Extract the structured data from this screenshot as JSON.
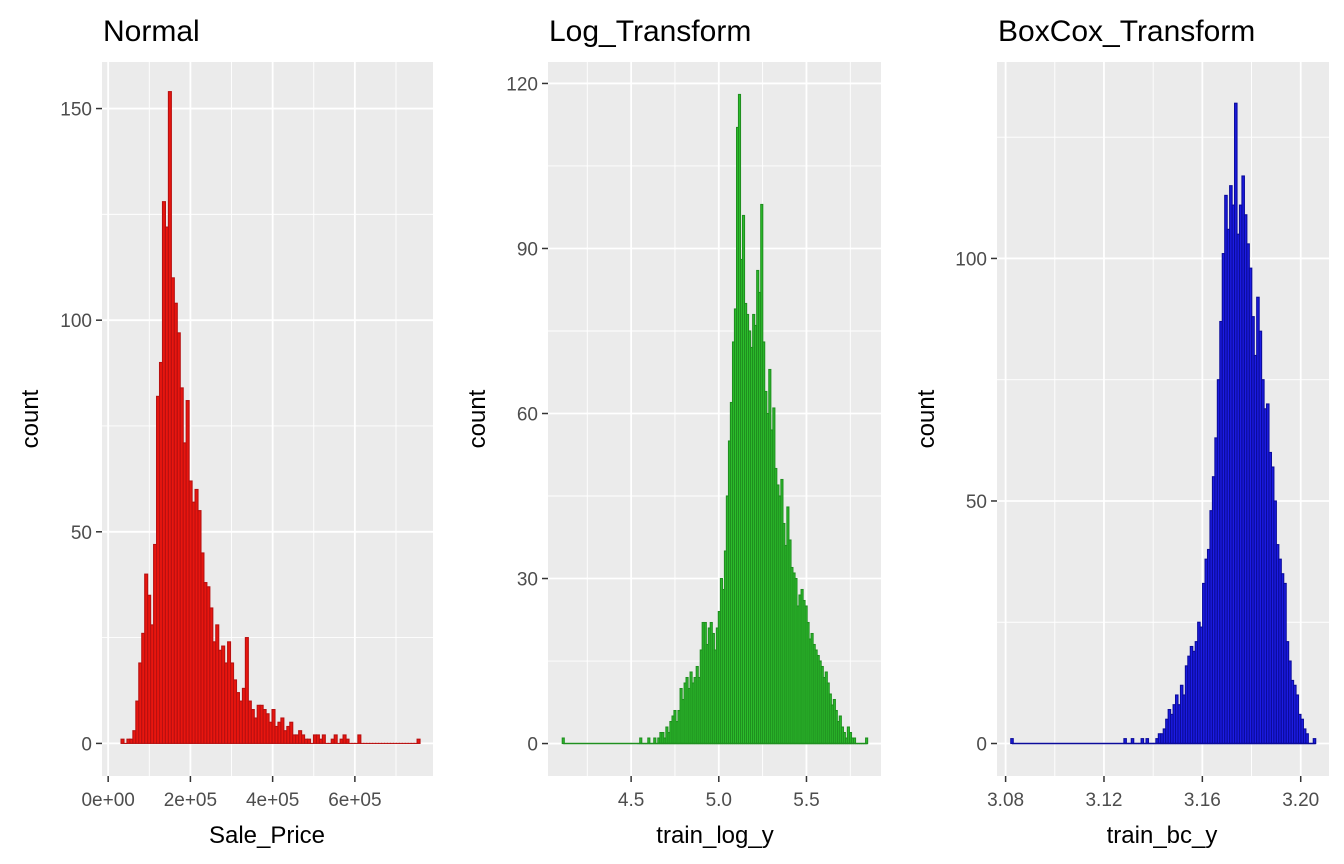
{
  "chart_data": [
    {
      "type": "bar",
      "title": "Normal",
      "xlabel": "Sale_Price",
      "ylabel": "count",
      "fill": "#e8160f",
      "stroke": "#b81010",
      "xlim": [
        -15000,
        790000
      ],
      "ylim": [
        -7.7,
        161
      ],
      "xticks": [
        {
          "value": 0,
          "label": "0e+00"
        },
        {
          "value": 200000,
          "label": "2e+05"
        },
        {
          "value": 400000,
          "label": "4e+05"
        },
        {
          "value": 600000,
          "label": "6e+05"
        }
      ],
      "yticks": [
        {
          "value": 0,
          "label": "0"
        },
        {
          "value": 50,
          "label": "50"
        },
        {
          "value": 100,
          "label": "100"
        },
        {
          "value": 150,
          "label": "150"
        }
      ],
      "bin_width": 7200,
      "bins": [
        [
          34900,
          1
        ],
        [
          42100,
          0
        ],
        [
          49300,
          1
        ],
        [
          56500,
          1
        ],
        [
          63700,
          3
        ],
        [
          70900,
          10
        ],
        [
          78100,
          19
        ],
        [
          85300,
          26
        ],
        [
          92500,
          40
        ],
        [
          99700,
          35
        ],
        [
          106900,
          28
        ],
        [
          114100,
          47
        ],
        [
          121300,
          82
        ],
        [
          128500,
          90
        ],
        [
          135700,
          128
        ],
        [
          142900,
          122
        ],
        [
          150100,
          154
        ],
        [
          157300,
          110
        ],
        [
          164500,
          104
        ],
        [
          171700,
          97
        ],
        [
          178900,
          84
        ],
        [
          186100,
          71
        ],
        [
          193300,
          81
        ],
        [
          200500,
          62
        ],
        [
          207700,
          57
        ],
        [
          214900,
          60
        ],
        [
          222100,
          55
        ],
        [
          229300,
          45
        ],
        [
          236500,
          38
        ],
        [
          243700,
          37
        ],
        [
          250900,
          32
        ],
        [
          258100,
          24
        ],
        [
          265300,
          28
        ],
        [
          272500,
          22
        ],
        [
          279700,
          23
        ],
        [
          286900,
          19
        ],
        [
          294100,
          24
        ],
        [
          301300,
          19
        ],
        [
          308500,
          15
        ],
        [
          315700,
          12
        ],
        [
          322900,
          10
        ],
        [
          330100,
          13
        ],
        [
          337300,
          25
        ],
        [
          344500,
          10
        ],
        [
          351700,
          8
        ],
        [
          358900,
          6
        ],
        [
          366100,
          9
        ],
        [
          373300,
          9
        ],
        [
          380500,
          8
        ],
        [
          387700,
          7
        ],
        [
          394900,
          5
        ],
        [
          402100,
          8
        ],
        [
          409300,
          4
        ],
        [
          416500,
          5
        ],
        [
          423700,
          6
        ],
        [
          430900,
          3
        ],
        [
          438100,
          4
        ],
        [
          445300,
          5
        ],
        [
          452500,
          2
        ],
        [
          459700,
          2
        ],
        [
          466900,
          3
        ],
        [
          474100,
          2
        ],
        [
          481300,
          1
        ],
        [
          488500,
          1
        ],
        [
          495700,
          0
        ],
        [
          502900,
          2
        ],
        [
          510100,
          2
        ],
        [
          517300,
          1
        ],
        [
          524500,
          2
        ],
        [
          531700,
          0
        ],
        [
          538900,
          0
        ],
        [
          546100,
          1
        ],
        [
          553300,
          2
        ],
        [
          560500,
          0
        ],
        [
          567700,
          1
        ],
        [
          574900,
          2
        ],
        [
          582100,
          1
        ],
        [
          589300,
          0
        ],
        [
          596500,
          0
        ],
        [
          603700,
          0
        ],
        [
          610900,
          2
        ],
        [
          618100,
          0
        ],
        [
          625300,
          0
        ],
        [
          632500,
          0
        ],
        [
          639700,
          0
        ],
        [
          646900,
          0
        ],
        [
          654100,
          0
        ],
        [
          661300,
          0
        ],
        [
          668500,
          0
        ],
        [
          675700,
          0
        ],
        [
          682900,
          0
        ],
        [
          690100,
          0
        ],
        [
          697300,
          0
        ],
        [
          704500,
          0
        ],
        [
          711700,
          0
        ],
        [
          718900,
          0
        ],
        [
          726100,
          0
        ],
        [
          733300,
          0
        ],
        [
          740500,
          0
        ],
        [
          747700,
          0
        ],
        [
          754900,
          1
        ]
      ]
    },
    {
      "type": "bar",
      "title": "Log_Transform",
      "xlabel": "train_log_y",
      "ylabel": "count",
      "fill": "#2ec12e",
      "stroke": "#1f8f1f",
      "xlim": [
        4.026,
        5.925
      ],
      "ylim": [
        -5.9,
        123.9
      ],
      "xticks": [
        {
          "value": 4.5,
          "label": "4.5"
        },
        {
          "value": 5.0,
          "label": "5.0"
        },
        {
          "value": 5.5,
          "label": "5.5"
        }
      ],
      "yticks": [
        {
          "value": 0,
          "label": "0"
        },
        {
          "value": 30,
          "label": "30"
        },
        {
          "value": 60,
          "label": "60"
        },
        {
          "value": 90,
          "label": "90"
        },
        {
          "value": 120,
          "label": "120"
        }
      ],
      "bin_width": 0.0115,
      "bins": [
        [
          4.543,
          0
        ],
        [
          4.555,
          1
        ],
        [
          4.566,
          0
        ],
        [
          4.578,
          0
        ],
        [
          4.589,
          0
        ],
        [
          4.601,
          1
        ],
        [
          4.612,
          0
        ],
        [
          4.624,
          0
        ],
        [
          4.635,
          1
        ],
        [
          4.647,
          0
        ],
        [
          4.658,
          1
        ],
        [
          4.67,
          2
        ],
        [
          4.681,
          2
        ],
        [
          4.693,
          1
        ],
        [
          4.704,
          3
        ],
        [
          4.716,
          2
        ],
        [
          4.727,
          4
        ],
        [
          4.739,
          5
        ],
        [
          4.75,
          6
        ],
        [
          4.762,
          4
        ],
        [
          4.773,
          6
        ],
        [
          4.785,
          10
        ],
        [
          4.796,
          8
        ],
        [
          4.808,
          11
        ],
        [
          4.819,
          12
        ],
        [
          4.831,
          10
        ],
        [
          4.842,
          13
        ],
        [
          4.854,
          11
        ],
        [
          4.865,
          12
        ],
        [
          4.877,
          14
        ],
        [
          4.888,
          12
        ],
        [
          4.9,
          17
        ],
        [
          4.911,
          22
        ],
        [
          4.923,
          22
        ],
        [
          4.934,
          18
        ],
        [
          4.946,
          21
        ],
        [
          4.957,
          22
        ],
        [
          4.969,
          20
        ],
        [
          4.98,
          17
        ],
        [
          4.992,
          21
        ],
        [
          5.003,
          24
        ],
        [
          5.015,
          30
        ],
        [
          5.026,
          28
        ],
        [
          5.038,
          35
        ],
        [
          5.049,
          45
        ],
        [
          5.061,
          55
        ],
        [
          5.072,
          62
        ],
        [
          5.084,
          73
        ],
        [
          5.095,
          79
        ],
        [
          5.107,
          112
        ],
        [
          5.118,
          118
        ],
        [
          5.13,
          88
        ],
        [
          5.141,
          96
        ],
        [
          5.153,
          80
        ],
        [
          5.164,
          78
        ],
        [
          5.176,
          75
        ],
        [
          5.187,
          72
        ],
        [
          5.199,
          78
        ],
        [
          5.21,
          76
        ],
        [
          5.222,
          86
        ],
        [
          5.233,
          82
        ],
        [
          5.245,
          98
        ],
        [
          5.256,
          73
        ],
        [
          5.268,
          64
        ],
        [
          5.279,
          60
        ],
        [
          5.291,
          68
        ],
        [
          5.302,
          57
        ],
        [
          5.314,
          61
        ],
        [
          5.325,
          50
        ],
        [
          5.337,
          47
        ],
        [
          5.348,
          45
        ],
        [
          5.36,
          48
        ],
        [
          5.371,
          40
        ],
        [
          5.383,
          36
        ],
        [
          5.394,
          43
        ],
        [
          5.406,
          37
        ],
        [
          5.417,
          32
        ],
        [
          5.429,
          31
        ],
        [
          5.44,
          30
        ],
        [
          5.452,
          25
        ],
        [
          5.463,
          27
        ],
        [
          5.475,
          28
        ],
        [
          5.486,
          26
        ],
        [
          5.498,
          25
        ],
        [
          5.509,
          22
        ],
        [
          5.521,
          19
        ],
        [
          5.532,
          20
        ],
        [
          5.544,
          18
        ],
        [
          5.555,
          17
        ],
        [
          5.567,
          16
        ],
        [
          5.578,
          15
        ],
        [
          5.59,
          14
        ],
        [
          5.601,
          12
        ],
        [
          5.613,
          13
        ],
        [
          5.624,
          11
        ],
        [
          5.636,
          9
        ],
        [
          5.647,
          7
        ],
        [
          5.659,
          8
        ],
        [
          5.67,
          6
        ],
        [
          5.682,
          4
        ],
        [
          5.693,
          5
        ],
        [
          5.705,
          3
        ],
        [
          5.716,
          2
        ],
        [
          5.728,
          1
        ],
        [
          5.739,
          3
        ],
        [
          5.751,
          2
        ],
        [
          5.762,
          1
        ],
        [
          5.774,
          1
        ],
        [
          5.785,
          0
        ],
        [
          5.797,
          0
        ],
        [
          5.808,
          0
        ],
        [
          5.82,
          0
        ],
        [
          5.831,
          0
        ],
        [
          5.843,
          1
        ]
      ],
      "extra_bins": [
        [
          4.113,
          1
        ]
      ],
      "baseline_from": 4.113
    },
    {
      "type": "bar",
      "title": "BoxCox_Transform",
      "xlabel": "train_bc_y",
      "ylabel": "count",
      "fill": "#1c1ce3",
      "stroke": "#0b0b9b",
      "xlim": [
        3.0765,
        3.2115
      ],
      "ylim": [
        -6.7,
        140.5
      ],
      "xticks": [
        {
          "value": 3.08,
          "label": "3.08"
        },
        {
          "value": 3.12,
          "label": "3.12"
        },
        {
          "value": 3.16,
          "label": "3.16"
        },
        {
          "value": 3.2,
          "label": "3.20"
        }
      ],
      "yticks": [
        {
          "value": 0,
          "label": "0"
        },
        {
          "value": 50,
          "label": "50"
        },
        {
          "value": 100,
          "label": "100"
        }
      ],
      "bin_width": 0.001,
      "bins": [
        [
          3.0826,
          1
        ],
        [
          3.1286,
          1
        ],
        [
          3.1296,
          0
        ],
        [
          3.1306,
          0
        ],
        [
          3.1316,
          1
        ],
        [
          3.1326,
          0
        ],
        [
          3.1336,
          0
        ],
        [
          3.1346,
          0
        ],
        [
          3.1356,
          1
        ],
        [
          3.1366,
          0
        ],
        [
          3.1376,
          1
        ],
        [
          3.1386,
          0
        ],
        [
          3.1396,
          0
        ],
        [
          3.1406,
          0
        ],
        [
          3.1416,
          1
        ],
        [
          3.1426,
          2
        ],
        [
          3.1436,
          2
        ],
        [
          3.1446,
          3
        ],
        [
          3.1456,
          5
        ],
        [
          3.1466,
          7
        ],
        [
          3.1476,
          6
        ],
        [
          3.1486,
          8
        ],
        [
          3.1496,
          10
        ],
        [
          3.1506,
          8
        ],
        [
          3.1516,
          12
        ],
        [
          3.1526,
          10
        ],
        [
          3.1536,
          16
        ],
        [
          3.1546,
          18
        ],
        [
          3.1556,
          20
        ],
        [
          3.1566,
          19
        ],
        [
          3.1576,
          21
        ],
        [
          3.1586,
          25
        ],
        [
          3.1596,
          24
        ],
        [
          3.1606,
          33
        ],
        [
          3.1616,
          38
        ],
        [
          3.1626,
          40
        ],
        [
          3.1636,
          48
        ],
        [
          3.1646,
          55
        ],
        [
          3.1656,
          63
        ],
        [
          3.1666,
          75
        ],
        [
          3.1676,
          87
        ],
        [
          3.1686,
          101
        ],
        [
          3.1696,
          113
        ],
        [
          3.1706,
          106
        ],
        [
          3.1716,
          115
        ],
        [
          3.1726,
          111
        ],
        [
          3.1736,
          132
        ],
        [
          3.1746,
          105
        ],
        [
          3.1756,
          111
        ],
        [
          3.1766,
          117
        ],
        [
          3.1776,
          109
        ],
        [
          3.1786,
          103
        ],
        [
          3.1796,
          98
        ],
        [
          3.1806,
          88
        ],
        [
          3.1816,
          80
        ],
        [
          3.1826,
          92
        ],
        [
          3.1836,
          85
        ],
        [
          3.1846,
          75
        ],
        [
          3.1856,
          69
        ],
        [
          3.1866,
          70
        ],
        [
          3.1876,
          60
        ],
        [
          3.1886,
          57
        ],
        [
          3.1896,
          50
        ],
        [
          3.1906,
          41
        ],
        [
          3.1916,
          38
        ],
        [
          3.1926,
          35
        ],
        [
          3.1936,
          33
        ],
        [
          3.1946,
          21
        ],
        [
          3.1956,
          17
        ],
        [
          3.1966,
          13
        ],
        [
          3.1976,
          12
        ],
        [
          3.1986,
          10
        ],
        [
          3.1996,
          6
        ],
        [
          3.2006,
          5
        ],
        [
          3.2016,
          3
        ],
        [
          3.2026,
          2
        ],
        [
          3.2036,
          0
        ],
        [
          3.2046,
          0
        ],
        [
          3.2056,
          1
        ]
      ],
      "baseline_from": 3.0826
    }
  ]
}
